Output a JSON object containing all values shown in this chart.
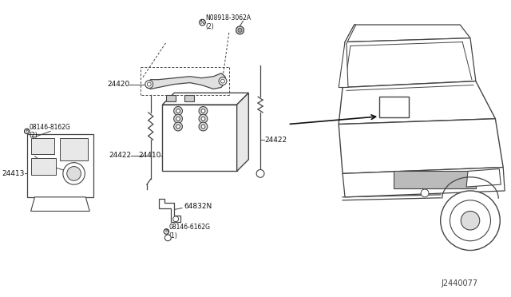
{
  "bg_color": "#ffffff",
  "line_color": "#444444",
  "dark_color": "#111111",
  "diagram_id": "J2440077",
  "parts": {
    "battery_label": "24410",
    "bracket_label": "24420",
    "cable1_label": "24422",
    "cable2_label": "24422",
    "tray_label": "24413",
    "bracket2_label": "64832N",
    "nut_label": "N08918-3062A\n(2)",
    "bolt1_label": "08146-8162G\n(2)",
    "bolt2_label": "08146-6162G\n(1)"
  }
}
